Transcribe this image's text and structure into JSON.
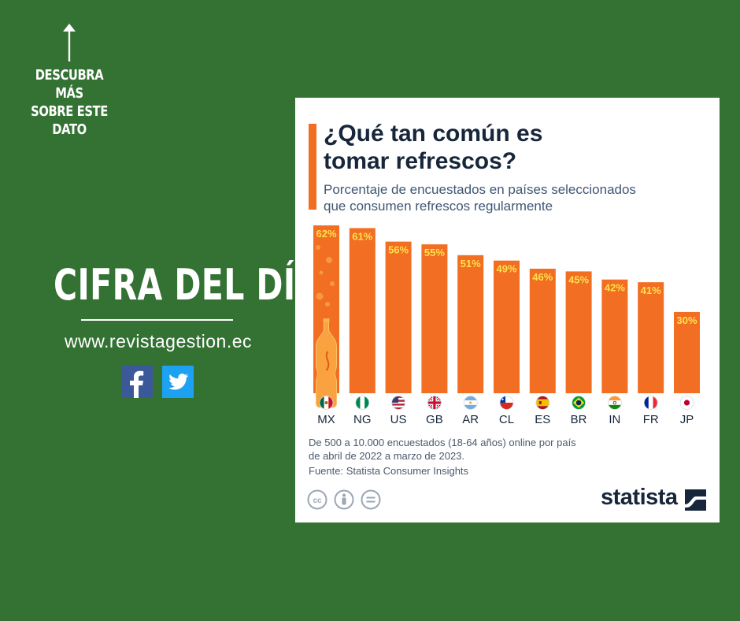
{
  "left_panel": {
    "cta_lines": [
      "DESCUBRA MÁS",
      "SOBRE ESTE",
      "DATO"
    ],
    "headline": "CIFRA DEL DÍA",
    "website": "www.revistagestion.ec",
    "social": [
      "facebook-icon",
      "twitter-icon"
    ]
  },
  "card": {
    "title_line1": "¿Qué tan común es",
    "title_line2": "tomar refrescos?",
    "subtitle_line1": "Porcentaje de encuestados en países seleccionados",
    "subtitle_line2": "que consumen refrescos regularmente",
    "note_line1": "De 500 a 10.000 encuestados (18-64 años) online por país",
    "note_line2": "de abril de 2022 a marzo de 2023.",
    "source": "Fuente: Statista Consumer Insights",
    "brand": "statista",
    "license_icons": [
      "cc-icon",
      "attribution-icon",
      "no-derivatives-icon"
    ]
  },
  "colors": {
    "background": "#337233",
    "bar": "#f26e23",
    "label": "#ffe14d",
    "title": "#17263a"
  },
  "chart_data": {
    "type": "bar",
    "title": "¿Qué tan común es tomar refrescos?",
    "ylabel": "",
    "xlabel": "",
    "ylim": [
      0,
      62
    ],
    "categories": [
      "MX",
      "NG",
      "US",
      "GB",
      "AR",
      "CL",
      "ES",
      "BR",
      "IN",
      "FR",
      "JP"
    ],
    "values": [
      62,
      61,
      56,
      55,
      51,
      49,
      46,
      45,
      42,
      41,
      30
    ],
    "value_labels": [
      "62%",
      "61%",
      "56%",
      "55%",
      "51%",
      "49%",
      "46%",
      "45%",
      "42%",
      "41%",
      "30%"
    ],
    "flags": [
      "mexico-flag-icon",
      "nigeria-flag-icon",
      "usa-flag-icon",
      "uk-flag-icon",
      "argentina-flag-icon",
      "chile-flag-icon",
      "spain-flag-icon",
      "brazil-flag-icon",
      "india-flag-icon",
      "france-flag-icon",
      "japan-flag-icon"
    ]
  }
}
